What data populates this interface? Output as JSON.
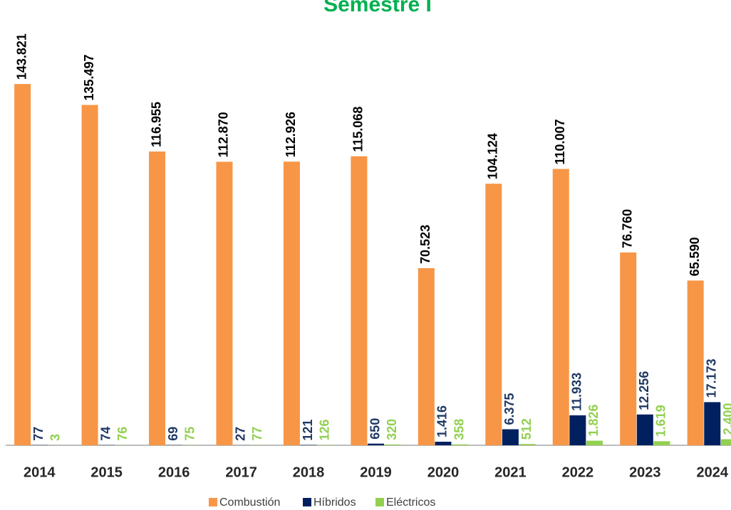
{
  "chart_data": {
    "type": "bar",
    "title": "Semestre I",
    "categories": [
      "2014",
      "2015",
      "2016",
      "2017",
      "2018",
      "2019",
      "2020",
      "2021",
      "2022",
      "2023",
      "2024"
    ],
    "series": [
      {
        "name": "Combustión",
        "color": "#f79646",
        "label_color": "#000000",
        "values": [
          143821,
          135497,
          116955,
          112870,
          112926,
          115068,
          70523,
          104124,
          110007,
          76760,
          65590
        ],
        "value_labels": [
          "143.821",
          "135.497",
          "116.955",
          "112.870",
          "112.926",
          "115.068",
          "70.523",
          "104.124",
          "110.007",
          "76.760",
          "65.590"
        ]
      },
      {
        "name": "Híbridos",
        "color": "#002060",
        "label_color": "#1f3864",
        "values": [
          77,
          74,
          69,
          27,
          121,
          650,
          1416,
          6375,
          11933,
          12256,
          17173
        ],
        "value_labels": [
          "77",
          "74",
          "69",
          "27",
          "121",
          "650",
          "1.416",
          "6.375",
          "11.933",
          "12.256",
          "17.173"
        ]
      },
      {
        "name": "Eléctricos",
        "color": "#92d050",
        "label_color": "#92d050",
        "values": [
          3,
          76,
          75,
          77,
          126,
          320,
          358,
          512,
          1826,
          1619,
          2400
        ],
        "value_labels": [
          "3",
          "76",
          "75",
          "77",
          "126",
          "320",
          "358",
          "512",
          "1.826",
          "1.619",
          "2.400"
        ]
      }
    ],
    "ylim": [
      0,
      160000
    ],
    "legend": "bottom",
    "title_color": "#00b050"
  }
}
